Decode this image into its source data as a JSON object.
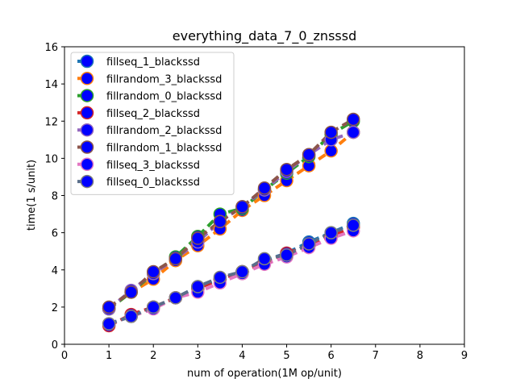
{
  "chart_data": {
    "type": "line",
    "title": "everything_data_7_0_znsssd",
    "xlabel": "num of operation(1M op/unit)",
    "ylabel": "time(1 s/unit)",
    "xlim": [
      0,
      9
    ],
    "ylim": [
      0,
      16
    ],
    "xticks": [
      0,
      1,
      2,
      3,
      4,
      5,
      6,
      7,
      8,
      9
    ],
    "yticks": [
      0,
      2,
      4,
      6,
      8,
      10,
      12,
      14,
      16
    ],
    "grid": false,
    "legend_position": "top-left",
    "marker_fill": "#0000ff",
    "x": [
      1,
      1.5,
      2,
      2.5,
      3,
      3.5,
      4,
      4.5,
      5,
      5.5,
      6,
      6.5
    ],
    "series": [
      {
        "name": "fillseq_1_blackssd",
        "color": "#1f77b4",
        "marker_edge": "#1f77b4",
        "values": [
          1.1,
          1.5,
          2.0,
          2.5,
          3.1,
          3.5,
          3.9,
          4.5,
          4.9,
          5.5,
          6.0,
          6.5
        ]
      },
      {
        "name": "fillrandom_3_blackssd",
        "color": "#ff7f0e",
        "marker_edge": "#ff7f0e",
        "values": [
          1.9,
          2.8,
          3.5,
          4.5,
          5.3,
          6.2,
          7.2,
          8.0,
          8.8,
          9.6,
          10.4,
          11.4
        ]
      },
      {
        "name": "fillrandom_0_blackssd",
        "color": "#2ca02c",
        "marker_edge": "#2ca02c",
        "values": [
          1.9,
          2.8,
          3.8,
          4.7,
          5.8,
          7.0,
          7.3,
          8.3,
          9.2,
          10.1,
          11.3,
          12.0
        ]
      },
      {
        "name": "fillseq_2_blackssd",
        "color": "#d62728",
        "marker_edge": "#d62728",
        "values": [
          1.0,
          1.6,
          2.0,
          2.5,
          3.0,
          3.5,
          3.9,
          4.4,
          4.9,
          5.3,
          5.8,
          6.3
        ]
      },
      {
        "name": "fillrandom_2_blackssd",
        "color": "#9467bd",
        "marker_edge": "#9467bd",
        "values": [
          1.9,
          2.9,
          3.8,
          4.6,
          5.5,
          6.6,
          7.4,
          8.3,
          9.3,
          10.2,
          11.0,
          11.4
        ]
      },
      {
        "name": "fillrandom_1_blackssd",
        "color": "#8c564b",
        "marker_edge": "#8c564b",
        "values": [
          2.0,
          2.8,
          3.9,
          4.6,
          5.7,
          6.6,
          7.4,
          8.4,
          9.4,
          10.2,
          11.4,
          12.1
        ]
      },
      {
        "name": "fillseq_3_blackssd",
        "color": "#e377c2",
        "marker_edge": "#e377c2",
        "values": [
          1.1,
          1.5,
          1.9,
          2.5,
          2.8,
          3.3,
          3.8,
          4.3,
          4.7,
          5.2,
          5.7,
          6.1
        ]
      },
      {
        "name": "fillseq_0_blackssd",
        "color": "#5a6e8a",
        "marker_edge": "#7f7f7f",
        "values": [
          1.1,
          1.5,
          2.0,
          2.5,
          3.1,
          3.6,
          3.9,
          4.6,
          4.8,
          5.4,
          6.0,
          6.4
        ]
      }
    ]
  }
}
